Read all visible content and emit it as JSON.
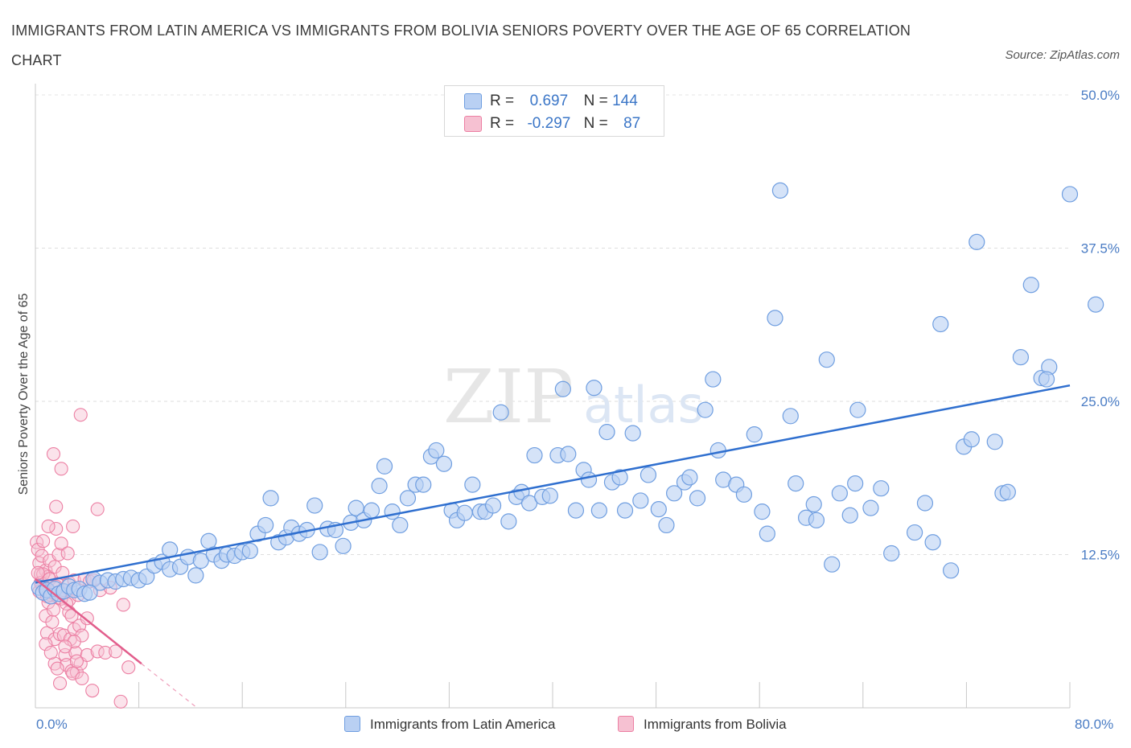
{
  "title": "IMMIGRANTS FROM LATIN AMERICA VS IMMIGRANTS FROM BOLIVIA SENIORS POVERTY OVER THE AGE OF 65 CORRELATION CHART",
  "source": "Source: ZipAtlas.com",
  "watermark": {
    "zip": "ZIP",
    "atlas": "atlas"
  },
  "legend": {
    "series1": {
      "r_label": "R =",
      "r_value": "0.697",
      "n_label": "N =",
      "n_value": "144"
    },
    "series2": {
      "r_label": "R =",
      "r_value": "-0.297",
      "n_label": "N =",
      "n_value": "87"
    }
  },
  "colors": {
    "blue": "#6f9ee0",
    "blue_fill": "#b9d0f3",
    "blue_line": "#2f6fcf",
    "pink": "#ec7fa3",
    "pink_fill": "#f6c1d2",
    "pink_line": "#e25e8c",
    "axis_text": "#4a7cc4"
  },
  "chart_data": {
    "type": "scatter",
    "title": "IMMIGRANTS FROM LATIN AMERICA VS IMMIGRANTS FROM BOLIVIA SENIORS POVERTY OVER THE AGE OF 65 CORRELATION CHART",
    "xlabel": "",
    "ylabel": "Seniors Poverty Over the Age of 65",
    "xlim": [
      0,
      80
    ],
    "ylim": [
      0,
      50
    ],
    "x_tick_labels": [
      "0.0%",
      "80.0%"
    ],
    "y_ticks": [
      12.5,
      25.0,
      37.5,
      50.0
    ],
    "y_tick_labels": [
      "12.5%",
      "25.0%",
      "37.5%",
      "50.0%"
    ],
    "grid": "horizontal dashed",
    "legend_position": "top-center and bottom-center",
    "series": [
      {
        "name": "Immigrants from Latin America",
        "trend": {
          "x": [
            0,
            80
          ],
          "y": [
            10.2,
            26.3
          ]
        },
        "points": [
          [
            0.3,
            9.8
          ],
          [
            0.6,
            9.4
          ],
          [
            0.9,
            9.6
          ],
          [
            1.2,
            9.1
          ],
          [
            1.5,
            9.7
          ],
          [
            1.8,
            9.3
          ],
          [
            2.2,
            9.5
          ],
          [
            2.6,
            9.9
          ],
          [
            3.0,
            9.6
          ],
          [
            3.4,
            9.7
          ],
          [
            3.8,
            9.3
          ],
          [
            4.5,
            10.5
          ],
          [
            5.0,
            10.2
          ],
          [
            5.6,
            10.4
          ],
          [
            6.2,
            10.3
          ],
          [
            6.8,
            10.5
          ],
          [
            7.4,
            10.6
          ],
          [
            8.0,
            10.4
          ],
          [
            8.6,
            10.7
          ],
          [
            9.2,
            11.6
          ],
          [
            9.8,
            11.9
          ],
          [
            10.4,
            11.3
          ],
          [
            10.4,
            12.9
          ],
          [
            11.2,
            11.5
          ],
          [
            11.8,
            12.3
          ],
          [
            12.4,
            10.8
          ],
          [
            12.8,
            12.0
          ],
          [
            13.4,
            13.6
          ],
          [
            13.8,
            12.5
          ],
          [
            14.4,
            12.0
          ],
          [
            14.8,
            12.5
          ],
          [
            15.4,
            12.4
          ],
          [
            16.0,
            12.7
          ],
          [
            16.6,
            12.8
          ],
          [
            17.2,
            14.2
          ],
          [
            17.8,
            14.9
          ],
          [
            18.2,
            17.1
          ],
          [
            18.8,
            13.5
          ],
          [
            19.4,
            13.9
          ],
          [
            19.8,
            14.7
          ],
          [
            20.4,
            14.2
          ],
          [
            21.0,
            14.5
          ],
          [
            21.6,
            16.5
          ],
          [
            22.0,
            12.7
          ],
          [
            22.6,
            14.6
          ],
          [
            23.2,
            14.5
          ],
          [
            23.8,
            13.2
          ],
          [
            24.4,
            15.1
          ],
          [
            24.8,
            16.3
          ],
          [
            25.4,
            15.3
          ],
          [
            26.0,
            16.1
          ],
          [
            26.6,
            18.1
          ],
          [
            27.0,
            19.7
          ],
          [
            27.6,
            16.0
          ],
          [
            28.2,
            14.9
          ],
          [
            28.8,
            17.1
          ],
          [
            29.4,
            18.2
          ],
          [
            30.0,
            18.2
          ],
          [
            30.6,
            20.5
          ],
          [
            31.0,
            21.0
          ],
          [
            31.6,
            19.9
          ],
          [
            32.2,
            16.1
          ],
          [
            32.6,
            15.3
          ],
          [
            33.2,
            15.9
          ],
          [
            33.8,
            18.2
          ],
          [
            34.4,
            16.0
          ],
          [
            34.8,
            16.0
          ],
          [
            35.4,
            16.5
          ],
          [
            36.0,
            24.1
          ],
          [
            36.6,
            15.2
          ],
          [
            37.2,
            17.2
          ],
          [
            37.6,
            17.6
          ],
          [
            38.2,
            16.7
          ],
          [
            38.6,
            20.6
          ],
          [
            39.2,
            17.2
          ],
          [
            39.8,
            17.3
          ],
          [
            40.4,
            20.6
          ],
          [
            40.8,
            26.0
          ],
          [
            41.2,
            20.7
          ],
          [
            41.8,
            16.1
          ],
          [
            42.4,
            19.4
          ],
          [
            42.8,
            18.6
          ],
          [
            43.2,
            26.1
          ],
          [
            43.6,
            16.1
          ],
          [
            44.2,
            22.5
          ],
          [
            44.6,
            18.4
          ],
          [
            45.2,
            18.8
          ],
          [
            45.6,
            16.1
          ],
          [
            46.2,
            22.4
          ],
          [
            46.8,
            16.9
          ],
          [
            47.4,
            19.0
          ],
          [
            48.2,
            16.2
          ],
          [
            48.8,
            14.9
          ],
          [
            49.4,
            17.5
          ],
          [
            50.2,
            18.4
          ],
          [
            50.6,
            18.8
          ],
          [
            51.2,
            17.1
          ],
          [
            51.8,
            24.3
          ],
          [
            52.4,
            26.8
          ],
          [
            52.8,
            21.0
          ],
          [
            53.2,
            18.6
          ],
          [
            54.2,
            18.2
          ],
          [
            54.8,
            17.4
          ],
          [
            55.6,
            22.3
          ],
          [
            56.2,
            16.0
          ],
          [
            56.6,
            14.2
          ],
          [
            57.2,
            31.8
          ],
          [
            57.6,
            42.2
          ],
          [
            58.4,
            23.8
          ],
          [
            58.8,
            18.3
          ],
          [
            59.6,
            15.5
          ],
          [
            60.2,
            16.6
          ],
          [
            60.4,
            15.3
          ],
          [
            61.2,
            28.4
          ],
          [
            61.6,
            11.7
          ],
          [
            62.2,
            17.5
          ],
          [
            63.0,
            15.7
          ],
          [
            63.4,
            18.3
          ],
          [
            63.6,
            24.3
          ],
          [
            64.6,
            16.3
          ],
          [
            65.4,
            17.9
          ],
          [
            66.2,
            12.6
          ],
          [
            68.0,
            14.3
          ],
          [
            68.8,
            16.7
          ],
          [
            69.4,
            13.5
          ],
          [
            70.0,
            31.3
          ],
          [
            70.8,
            11.2
          ],
          [
            71.8,
            21.3
          ],
          [
            72.4,
            21.9
          ],
          [
            72.8,
            38.0
          ],
          [
            74.2,
            21.7
          ],
          [
            74.8,
            17.5
          ],
          [
            75.2,
            17.6
          ],
          [
            76.2,
            28.6
          ],
          [
            77.0,
            34.5
          ],
          [
            77.8,
            26.9
          ],
          [
            78.4,
            27.8
          ],
          [
            78.2,
            26.8
          ],
          [
            80.0,
            41.9
          ],
          [
            82.0,
            32.9
          ],
          [
            4.2,
            9.4
          ]
        ]
      },
      {
        "name": "Immigrants from Bolivia",
        "trend": {
          "x": [
            0,
            8.2
          ],
          "y": [
            10.5,
            3.6
          ]
        },
        "trend_dashed": {
          "x": [
            8.2,
            12.5
          ],
          "y": [
            3.6,
            0
          ]
        },
        "points": [
          [
            0.1,
            13.5
          ],
          [
            0.2,
            12.9
          ],
          [
            0.3,
            11.8
          ],
          [
            0.4,
            10.9
          ],
          [
            0.5,
            10.2
          ],
          [
            0.5,
            12.4
          ],
          [
            0.6,
            13.6
          ],
          [
            0.7,
            9.7
          ],
          [
            0.8,
            11.2
          ],
          [
            0.8,
            7.5
          ],
          [
            0.9,
            6.1
          ],
          [
            1.0,
            8.6
          ],
          [
            1.0,
            10.7
          ],
          [
            1.1,
            12.0
          ],
          [
            1.2,
            9.2
          ],
          [
            1.3,
            7.0
          ],
          [
            1.4,
            20.7
          ],
          [
            1.4,
            8.0
          ],
          [
            1.5,
            5.6
          ],
          [
            1.5,
            3.6
          ],
          [
            1.6,
            16.4
          ],
          [
            1.6,
            14.6
          ],
          [
            1.7,
            10.1
          ],
          [
            1.8,
            12.5
          ],
          [
            1.9,
            6.0
          ],
          [
            1.9,
            2.0
          ],
          [
            2.0,
            19.5
          ],
          [
            2.0,
            13.4
          ],
          [
            2.1,
            9.6
          ],
          [
            2.2,
            5.9
          ],
          [
            2.3,
            4.3
          ],
          [
            2.4,
            3.5
          ],
          [
            2.5,
            12.6
          ],
          [
            2.6,
            10.2
          ],
          [
            2.6,
            8.8
          ],
          [
            2.7,
            5.6
          ],
          [
            2.8,
            3.0
          ],
          [
            2.9,
            14.8
          ],
          [
            3.0,
            10.4
          ],
          [
            3.0,
            6.4
          ],
          [
            3.1,
            4.5
          ],
          [
            3.2,
            2.9
          ],
          [
            3.3,
            9.2
          ],
          [
            3.4,
            6.7
          ],
          [
            3.5,
            23.9
          ],
          [
            3.5,
            3.6
          ],
          [
            3.6,
            5.9
          ],
          [
            3.8,
            10.5
          ],
          [
            4.0,
            7.3
          ],
          [
            4.0,
            4.3
          ],
          [
            4.2,
            10.3
          ],
          [
            4.4,
            1.4
          ],
          [
            4.5,
            10.4
          ],
          [
            4.8,
            16.2
          ],
          [
            4.8,
            4.6
          ],
          [
            5.0,
            9.6
          ],
          [
            5.4,
            4.5
          ],
          [
            5.8,
            9.8
          ],
          [
            6.2,
            4.6
          ],
          [
            6.6,
            0.5
          ],
          [
            6.8,
            8.4
          ],
          [
            7.2,
            3.3
          ],
          [
            0.3,
            9.5
          ],
          [
            0.4,
            10.2
          ],
          [
            0.6,
            10.9
          ],
          [
            0.9,
            9.1
          ],
          [
            1.1,
            10.5
          ],
          [
            1.3,
            9.4
          ],
          [
            1.6,
            9.9
          ],
          [
            1.8,
            9.0
          ],
          [
            2.0,
            8.9
          ],
          [
            2.2,
            9.6
          ],
          [
            2.4,
            8.5
          ],
          [
            2.6,
            7.8
          ],
          [
            2.8,
            7.5
          ],
          [
            3.0,
            5.4
          ],
          [
            3.2,
            3.8
          ],
          [
            1.0,
            14.8
          ],
          [
            1.5,
            11.5
          ],
          [
            2.1,
            11.0
          ],
          [
            0.2,
            11.0
          ],
          [
            0.8,
            5.2
          ],
          [
            1.2,
            4.5
          ],
          [
            1.7,
            3.2
          ],
          [
            2.3,
            5.0
          ],
          [
            2.9,
            2.8
          ],
          [
            3.6,
            2.4
          ]
        ]
      }
    ]
  }
}
